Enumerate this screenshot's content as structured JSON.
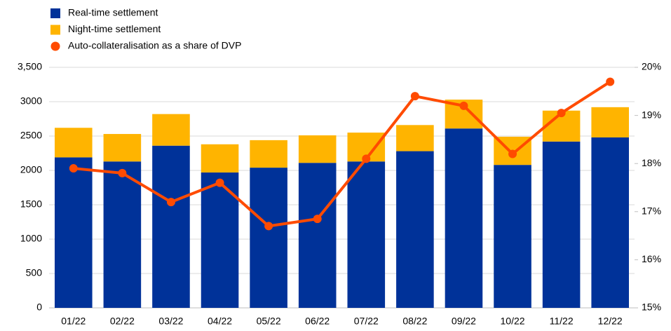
{
  "chart_data": {
    "type": "bar_line",
    "categories": [
      "01/22",
      "02/22",
      "03/22",
      "04/22",
      "05/22",
      "06/22",
      "07/22",
      "08/22",
      "09/22",
      "10/22",
      "11/22",
      "12/22"
    ],
    "series": [
      {
        "name": "Real-time settlement",
        "color": "#003299",
        "type": "bar",
        "values": [
          2190,
          2130,
          2360,
          1970,
          2040,
          2110,
          2130,
          2280,
          2610,
          2080,
          2420,
          2480
        ]
      },
      {
        "name": "Night-time settlement",
        "color": "#ffb400",
        "type": "bar",
        "values": [
          430,
          400,
          460,
          410,
          400,
          400,
          420,
          380,
          420,
          410,
          450,
          440
        ]
      },
      {
        "name": "Auto-collateralisation as a share of DVP",
        "color": "#ff4b00",
        "type": "line",
        "axis": "y2",
        "values": [
          17.9,
          17.8,
          17.2,
          17.6,
          16.7,
          16.85,
          18.1,
          19.4,
          19.2,
          18.2,
          19.05,
          19.7
        ]
      }
    ],
    "ylim": [
      0,
      3500
    ],
    "yticks": [
      0,
      500,
      1000,
      1500,
      2000,
      2500,
      3000,
      {
        "value": 3500,
        "label": "3,500"
      }
    ],
    "y2lim": [
      15,
      20
    ],
    "y2ticks": [
      {
        "value": 15,
        "label": "15%"
      },
      {
        "value": 16,
        "label": "16%"
      },
      {
        "value": 17,
        "label": "17%"
      },
      {
        "value": 18,
        "label": "18%"
      },
      {
        "value": 19,
        "label": "19%"
      },
      {
        "value": 20,
        "label": "20%"
      }
    ],
    "grid": true,
    "legend": "top-left"
  }
}
